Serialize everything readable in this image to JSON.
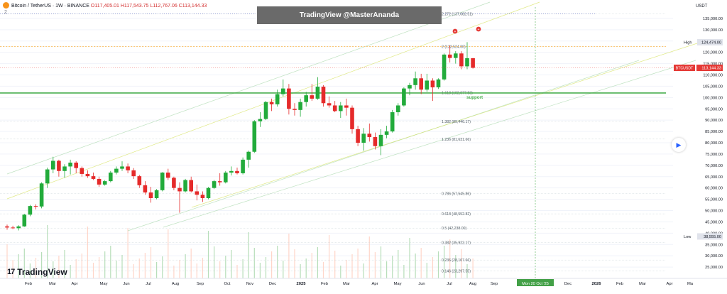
{
  "header": {
    "symbol": "Bitcoin / TetherUS · 1W · BINANCE",
    "ohlc": "O117,405.01 H117,543.75 L112,767.06 C113,144.33",
    "collapse": "2"
  },
  "watermark": "TradingView @MasterAnanda",
  "brand": {
    "name": "TradingView",
    "mark": "17"
  },
  "axis_unit": "USDT",
  "colors": {
    "up": "#22ab3b",
    "down": "#e52a2a",
    "support": "#4caf50",
    "fib": "#f5c542",
    "channel": "#a5d6a7",
    "crosshair": "#2962ff"
  },
  "chart_data": {
    "type": "candlestick",
    "ylim": [
      20000,
      140000
    ],
    "yticks": [
      "135,000.00",
      "130,000.00",
      "125,000.00",
      "120,000.00",
      "115,000.00",
      "110,000.00",
      "105,000.00",
      "100,000.00",
      "95,000.00",
      "90,000.00",
      "85,000.00",
      "80,000.00",
      "75,000.00",
      "70,000.00",
      "65,000.00",
      "60,000.00",
      "55,000.00",
      "50,000.00",
      "45,000.00",
      "40,000.00",
      "35,000.00",
      "30,000.00",
      "25,000.00"
    ],
    "xticks": [
      "Feb",
      "Mar",
      "Apr",
      "May",
      "Jun",
      "Jul",
      "Aug",
      "Sep",
      "Oct",
      "Nov",
      "Dec",
      "2025",
      "Feb",
      "Mar",
      "Apr",
      "May",
      "Jun",
      "Jul",
      "Aug",
      "Sep",
      "Dec",
      "2026",
      "Feb",
      "Mar",
      "Apr",
      "Ma"
    ],
    "crosshair_date": "Mon 20 Oct '25",
    "candles": [
      [
        43000,
        43800,
        41500,
        42500
      ],
      [
        42500,
        43300,
        41800,
        42200
      ],
      [
        42200,
        43500,
        41200,
        43000
      ],
      [
        43000,
        48500,
        42800,
        48200
      ],
      [
        48200,
        52500,
        47500,
        52000
      ],
      [
        52000,
        52800,
        50500,
        51800
      ],
      [
        51800,
        62500,
        51000,
        62000
      ],
      [
        62000,
        69000,
        60000,
        68200
      ],
      [
        68200,
        73800,
        66500,
        72000
      ],
      [
        72000,
        72500,
        65000,
        67500
      ],
      [
        67500,
        70500,
        64500,
        69500
      ],
      [
        69500,
        72500,
        66000,
        71200
      ],
      [
        71200,
        71800,
        66500,
        68800
      ],
      [
        68800,
        69500,
        65000,
        66200
      ],
      [
        66200,
        67800,
        64500,
        65200
      ],
      [
        65200,
        66800,
        63500,
        64000
      ],
      [
        64000,
        65000,
        60500,
        61500
      ],
      [
        61500,
        63500,
        61000,
        63000
      ],
      [
        63000,
        67500,
        62500,
        66800
      ],
      [
        66800,
        69500,
        66000,
        68500
      ],
      [
        68500,
        71800,
        67500,
        69500
      ],
      [
        69500,
        70800,
        66500,
        67800
      ],
      [
        67800,
        68800,
        64000,
        65200
      ],
      [
        65200,
        65800,
        60000,
        61200
      ],
      [
        61200,
        63000,
        57000,
        58000
      ],
      [
        58000,
        60500,
        53500,
        55500
      ],
      [
        55500,
        59500,
        55000,
        59000
      ],
      [
        59000,
        67000,
        58500,
        66800
      ],
      [
        66800,
        68500,
        63500,
        64500
      ],
      [
        64500,
        65000,
        59000,
        60000
      ],
      [
        60000,
        62500,
        49000,
        58500
      ],
      [
        58500,
        64000,
        58000,
        63500
      ],
      [
        63500,
        65000,
        58000,
        58500
      ],
      [
        58500,
        61500,
        54500,
        57000
      ],
      [
        57000,
        58500,
        53800,
        55500
      ],
      [
        55500,
        60500,
        55000,
        60000
      ],
      [
        60000,
        63500,
        59500,
        63000
      ],
      [
        63000,
        66500,
        61000,
        62500
      ],
      [
        62500,
        67500,
        62000,
        66800
      ],
      [
        66800,
        69500,
        65500,
        67500
      ],
      [
        67500,
        69000,
        66000,
        66500
      ],
      [
        66500,
        73500,
        66000,
        72500
      ],
      [
        72500,
        76500,
        69000,
        76000
      ],
      [
        76000,
        90000,
        75500,
        89500
      ],
      [
        89500,
        93500,
        87000,
        90500
      ],
      [
        90500,
        98500,
        90000,
        98000
      ],
      [
        98000,
        99500,
        94000,
        97000
      ],
      [
        97000,
        103500,
        96000,
        101500
      ],
      [
        101500,
        108000,
        100500,
        104000
      ],
      [
        104000,
        106000,
        92500,
        95000
      ],
      [
        95000,
        97500,
        92000,
        94500
      ],
      [
        94500,
        99500,
        91500,
        98000
      ],
      [
        98000,
        102500,
        96000,
        101000
      ],
      [
        101000,
        106000,
        98500,
        99500
      ],
      [
        99500,
        109000,
        99000,
        104800
      ],
      [
        104800,
        105500,
        96000,
        97500
      ],
      [
        97500,
        100500,
        95500,
        96500
      ],
      [
        96500,
        98500,
        93500,
        94000
      ],
      [
        94000,
        98000,
        91000,
        96500
      ],
      [
        96500,
        99500,
        92000,
        95500
      ],
      [
        95500,
        96500,
        84000,
        86000
      ],
      [
        86000,
        87500,
        78500,
        80000
      ],
      [
        80000,
        86500,
        76500,
        84000
      ],
      [
        84000,
        88500,
        80500,
        82500
      ],
      [
        82500,
        84500,
        77000,
        78500
      ],
      [
        78500,
        86000,
        74500,
        83500
      ],
      [
        83500,
        87500,
        82000,
        85000
      ],
      [
        85000,
        94500,
        84500,
        93500
      ],
      [
        93500,
        97500,
        92000,
        96500
      ],
      [
        96500,
        104500,
        96000,
        104000
      ],
      [
        104000,
        106500,
        101000,
        105500
      ],
      [
        105500,
        111500,
        103500,
        108500
      ],
      [
        108500,
        110500,
        101500,
        103500
      ],
      [
        103500,
        110500,
        102500,
        107500
      ],
      [
        107500,
        108500,
        98500,
        104500
      ],
      [
        104500,
        108500,
        103800,
        108000
      ],
      [
        108000,
        119500,
        107500,
        119000
      ],
      [
        119000,
        123000,
        115500,
        117500
      ],
      [
        117500,
        120500,
        115000,
        119500
      ],
      [
        119500,
        120500,
        112500,
        113800
      ],
      [
        113800,
        124500,
        112500,
        117400
      ],
      [
        117400,
        117500,
        112800,
        113144
      ]
    ],
    "volume_scale": [
      0,
      100
    ],
    "levels": [
      {
        "label": "2.272 (137,082.51)",
        "value": 137082.51
      },
      {
        "label": "2 (122,524.00)",
        "value": 122524.0
      },
      {
        "label": "1.618 (102,077.83)",
        "value": 102077.83
      },
      {
        "label": "1.382 (89,446.17)",
        "value": 89446.17
      },
      {
        "label": "1.236 (81,631.66)",
        "value": 81631.66
      },
      {
        "label": "0.786 (57,545.86)",
        "value": 57545.86
      },
      {
        "label": "0.618 (48,552.82)",
        "value": 48552.82
      },
      {
        "label": "0.5 (42,238.00)",
        "value": 42238.0
      },
      {
        "label": "0.382 (35,922.17)",
        "value": 35922.17
      },
      {
        "label": "0.236 (28,107.66)",
        "value": 28107.66
      },
      {
        "label": "0.146 (23,297.55)",
        "value": 23297.55
      }
    ],
    "support": {
      "label": "support",
      "value": 102000
    },
    "markers": {
      "high_label": "High",
      "high_value": "124,474.00",
      "low_label": "Low",
      "low_value": "38,555.00",
      "last_symbol": "BTCUSDT",
      "last_value": "113,144.33"
    }
  }
}
